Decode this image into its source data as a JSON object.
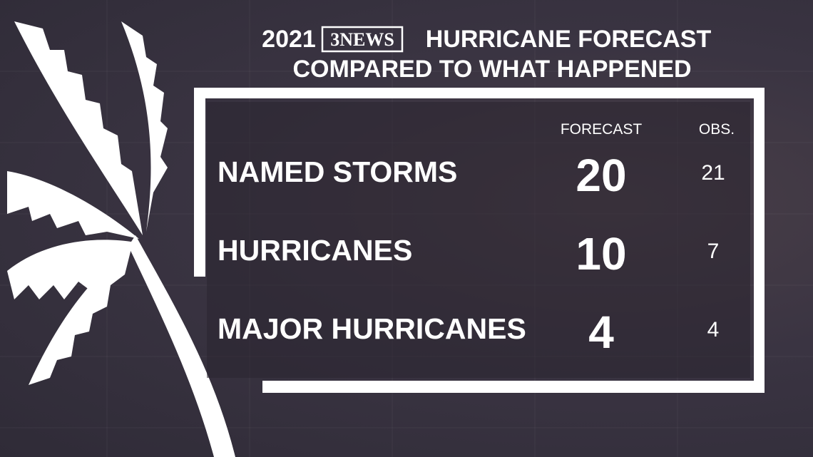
{
  "header": {
    "year": "2021",
    "logo": "3NEWS",
    "title_line1": "HURRICANE FORECAST",
    "title_line2": "COMPARED TO WHAT HAPPENED"
  },
  "table": {
    "columns": [
      "FORECAST",
      "OBS."
    ],
    "rows": [
      [
        "NAMED STORMS",
        20,
        21
      ],
      [
        "HURRICANES",
        10,
        7
      ],
      [
        "MAJOR HURRICANES",
        4,
        4
      ]
    ]
  }
}
